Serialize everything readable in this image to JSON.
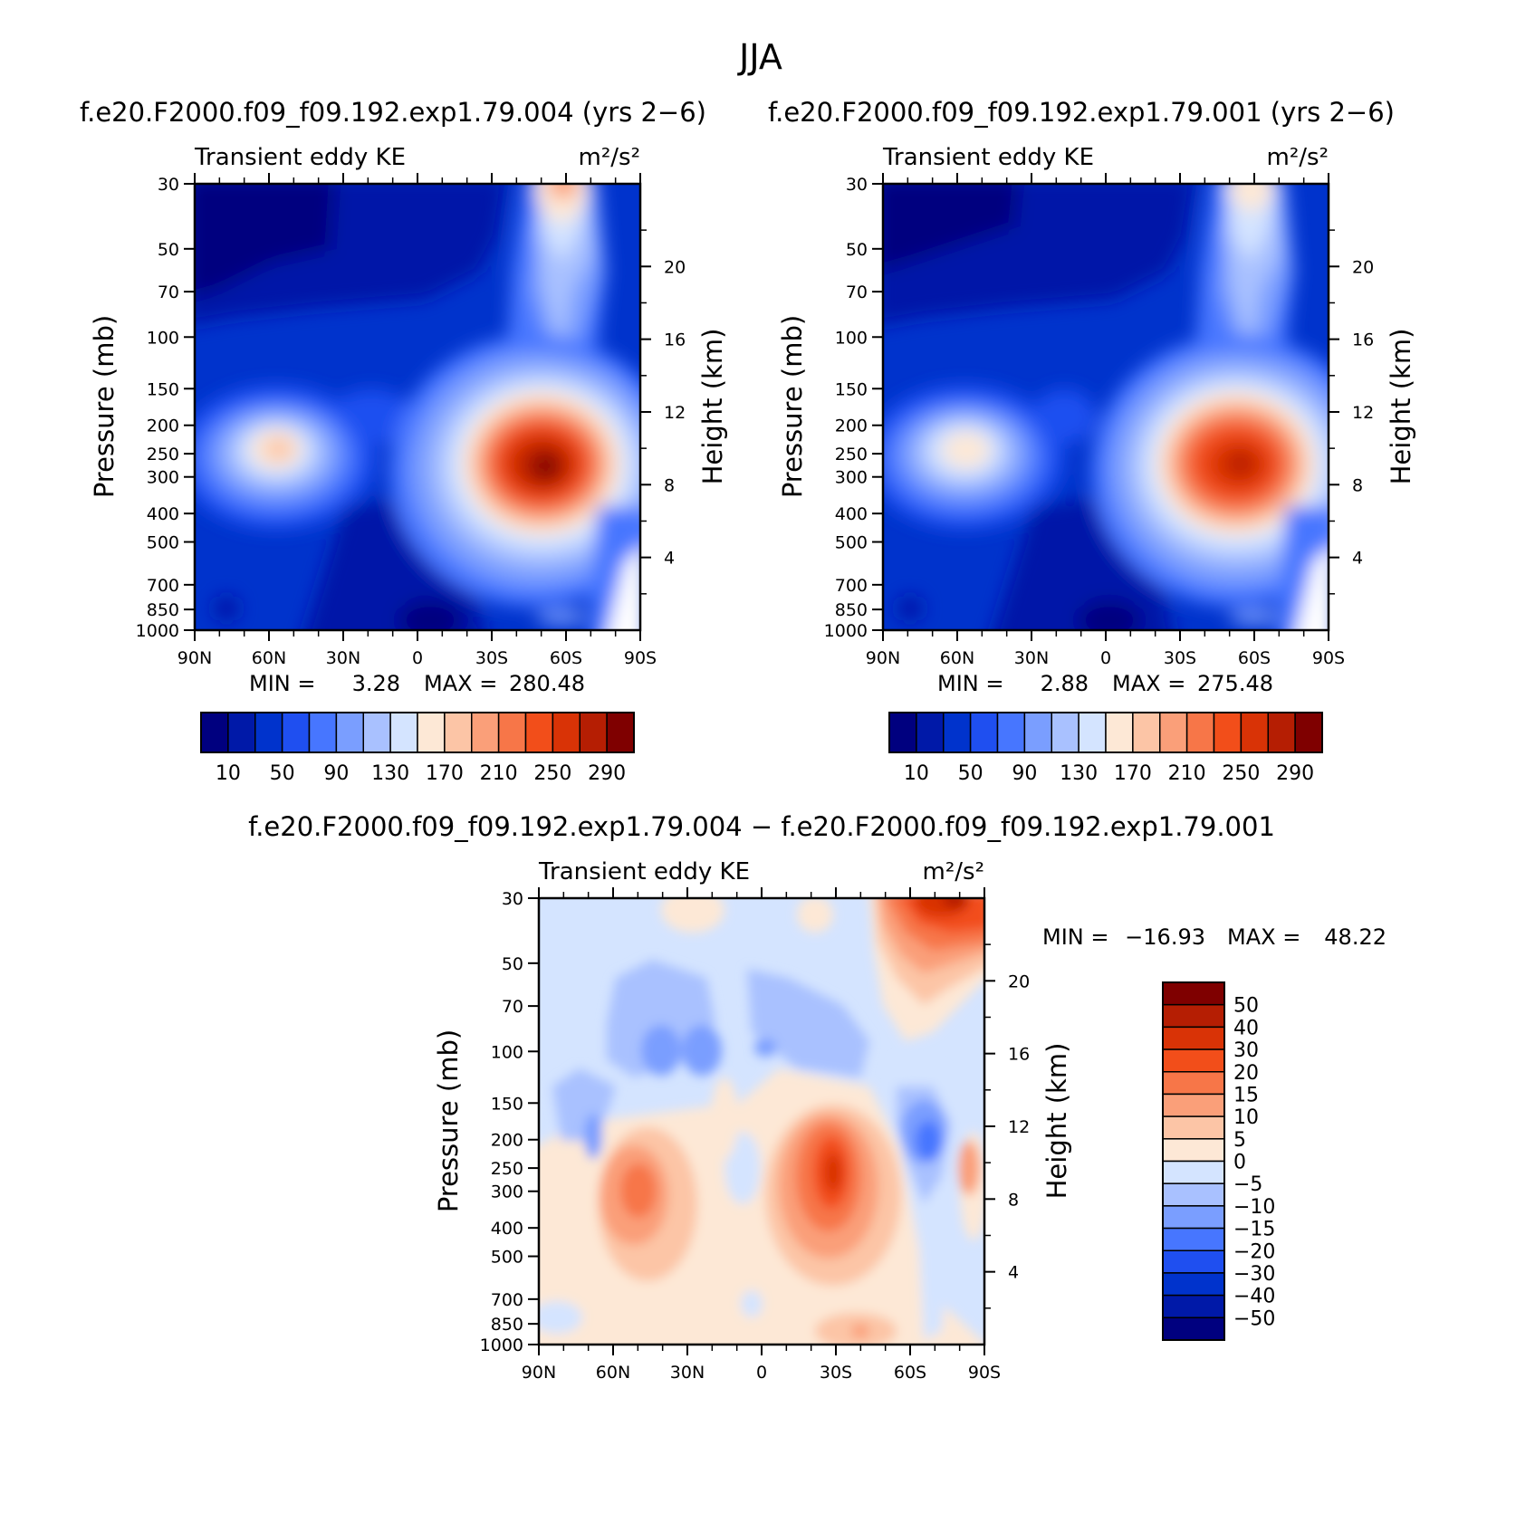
{
  "page": {
    "title": "JJA"
  },
  "chart_data": [
    {
      "type": "heatmap",
      "panel": "top-left",
      "case_title": "f.e20.F2000.f09_f09.192.exp1.79.004 (yrs 2−6)",
      "left_label": "Transient eddy KE",
      "units_label": "m²/s²",
      "ylabel": "Pressure (mb)",
      "ylabel_right": "Height (km)",
      "x_ticks": [
        "90N",
        "60N",
        "30N",
        "0",
        "30S",
        "60S",
        "90S"
      ],
      "x_values": [
        90,
        60,
        30,
        0,
        -30,
        -60,
        -90
      ],
      "y_ticks": [
        30,
        50,
        70,
        100,
        150,
        200,
        250,
        300,
        400,
        500,
        700,
        850,
        1000
      ],
      "y_scale": "log",
      "ylim": [
        1000,
        30
      ],
      "height_ticks": [
        4,
        8,
        12,
        16,
        20
      ],
      "min_label": "MIN =",
      "min_value": "3.28",
      "max_label": "MAX =",
      "max_value": "280.48",
      "colorbar": {
        "orientation": "horizontal",
        "labels": [
          "10",
          "50",
          "90",
          "130",
          "170",
          "210",
          "250",
          "290"
        ],
        "colors": [
          "#00007f",
          "#0019a8",
          "#0033cc",
          "#1f4ff0",
          "#4776ff",
          "#7a9eff",
          "#a9c1ff",
          "#d4e4ff",
          "#fde8d6",
          "#fcc5a6",
          "#fa9f79",
          "#f77648",
          "#f24e1a",
          "#d93306",
          "#b51e03",
          "#7f0000"
        ]
      },
      "maxima": [
        {
          "lat": -52,
          "p": 280,
          "value": 280.48
        },
        {
          "lat": 55,
          "p": 250,
          "value": 190
        }
      ]
    },
    {
      "type": "heatmap",
      "panel": "top-right",
      "case_title": "f.e20.F2000.f09_f09.192.exp1.79.001 (yrs 2−6)",
      "left_label": "Transient eddy KE",
      "units_label": "m²/s²",
      "ylabel": "Pressure (mb)",
      "ylabel_right": "Height (km)",
      "x_ticks": [
        "90N",
        "60N",
        "30N",
        "0",
        "30S",
        "60S",
        "90S"
      ],
      "x_values": [
        90,
        60,
        30,
        0,
        -30,
        -60,
        -90
      ],
      "y_ticks": [
        30,
        50,
        70,
        100,
        150,
        200,
        250,
        300,
        400,
        500,
        700,
        850,
        1000
      ],
      "y_scale": "log",
      "ylim": [
        1000,
        30
      ],
      "height_ticks": [
        4,
        8,
        12,
        16,
        20
      ],
      "min_label": "MIN =",
      "min_value": "2.88",
      "max_label": "MAX =",
      "max_value": "275.48",
      "colorbar": {
        "orientation": "horizontal",
        "labels": [
          "10",
          "50",
          "90",
          "130",
          "170",
          "210",
          "250",
          "290"
        ],
        "colors": [
          "#00007f",
          "#0019a8",
          "#0033cc",
          "#1f4ff0",
          "#4776ff",
          "#7a9eff",
          "#a9c1ff",
          "#d4e4ff",
          "#fde8d6",
          "#fcc5a6",
          "#fa9f79",
          "#f77648",
          "#f24e1a",
          "#d93306",
          "#b51e03",
          "#7f0000"
        ]
      },
      "maxima": [
        {
          "lat": -53,
          "p": 270,
          "value": 275.48
        },
        {
          "lat": 55,
          "p": 260,
          "value": 180
        }
      ]
    },
    {
      "type": "heatmap",
      "panel": "bottom",
      "case_title": "f.e20.F2000.f09_f09.192.exp1.79.004 − f.e20.F2000.f09_f09.192.exp1.79.001",
      "left_label": "Transient eddy KE",
      "units_label": "m²/s²",
      "ylabel": "Pressure (mb)",
      "ylabel_right": "Height (km)",
      "x_ticks": [
        "90N",
        "60N",
        "30N",
        "0",
        "30S",
        "60S",
        "90S"
      ],
      "x_values": [
        90,
        60,
        30,
        0,
        -30,
        -60,
        -90
      ],
      "y_ticks": [
        30,
        50,
        70,
        100,
        150,
        200,
        250,
        300,
        400,
        500,
        700,
        850,
        1000
      ],
      "y_scale": "log",
      "ylim": [
        1000,
        30
      ],
      "height_ticks": [
        4,
        8,
        12,
        16,
        20
      ],
      "min_label": "MIN =",
      "min_value": "−16.93",
      "max_label": "MAX =",
      "max_value": "48.22",
      "colorbar": {
        "orientation": "vertical",
        "labels": [
          "50",
          "40",
          "30",
          "20",
          "15",
          "10",
          "5",
          "0",
          "−5",
          "−10",
          "−15",
          "−20",
          "−30",
          "−40",
          "−50"
        ],
        "colors": [
          "#7f0000",
          "#b51e03",
          "#d93306",
          "#f24e1a",
          "#f77648",
          "#fa9f79",
          "#fcc5a6",
          "#fde8d6",
          "#d4e4ff",
          "#a9c1ff",
          "#7a9eff",
          "#4776ff",
          "#1f4ff0",
          "#0033cc",
          "#0019a8",
          "#00007f"
        ]
      },
      "maxima": [
        {
          "lat": -75,
          "p": 35,
          "value": 48.22
        },
        {
          "lat": -30,
          "p": 280,
          "value": 25
        },
        {
          "lat": 47,
          "p": 300,
          "value": 20
        },
        {
          "lat": -72,
          "p": 220,
          "value": -16.93
        }
      ]
    }
  ]
}
